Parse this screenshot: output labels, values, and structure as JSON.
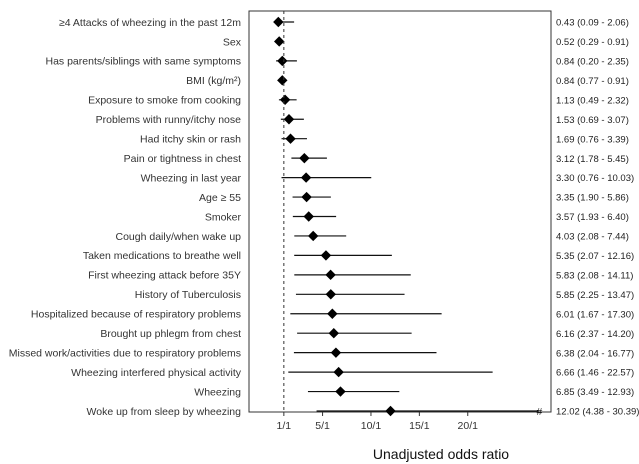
{
  "chart_data": {
    "type": "forest",
    "xlabel": "Unadjusted odds ratio",
    "xlim": [
      -2.6,
      28.6
    ],
    "reference_line": 1,
    "x_ticks": [
      {
        "value": 1,
        "label": "1/1"
      },
      {
        "value": 5,
        "label": "5/1"
      },
      {
        "value": 10,
        "label": "10/1"
      },
      {
        "value": 15,
        "label": "15/1"
      },
      {
        "value": 20,
        "label": "20/1"
      }
    ],
    "rows": [
      {
        "label": "≥4 Attacks of wheezing in the past 12m",
        "or": 0.43,
        "low": 0.09,
        "high": 2.06,
        "text": "0.43 (0.09 - 2.06)"
      },
      {
        "label": "Sex",
        "or": 0.52,
        "low": 0.29,
        "high": 0.91,
        "text": "0.52 (0.29 - 0.91)"
      },
      {
        "label": "Has parents/siblings with same symptoms",
        "or": 0.84,
        "low": 0.2,
        "high": 2.35,
        "text": "0.84 (0.20 - 2.35)"
      },
      {
        "label": "BMI (kg/m²)",
        "or": 0.84,
        "low": 0.77,
        "high": 0.91,
        "text": "0.84 (0.77 - 0.91)"
      },
      {
        "label": "Exposure to smoke from cooking",
        "or": 1.13,
        "low": 0.49,
        "high": 2.32,
        "text": "1.13 (0.49 - 2.32)"
      },
      {
        "label": "Problems with runny/itchy nose",
        "or": 1.53,
        "low": 0.69,
        "high": 3.07,
        "text": "1.53 (0.69 - 3.07)"
      },
      {
        "label": "Had itchy skin or rash",
        "or": 1.69,
        "low": 0.76,
        "high": 3.39,
        "text": "1.69 (0.76 - 3.39)"
      },
      {
        "label": "Pain or tightness in chest",
        "or": 3.12,
        "low": 1.78,
        "high": 5.45,
        "text": "3.12 (1.78 - 5.45)"
      },
      {
        "label": "Wheezing in last year",
        "or": 3.3,
        "low": 0.76,
        "high": 10.03,
        "text": "3.30 (0.76 - 10.03)"
      },
      {
        "label": "Age ≥ 55",
        "or": 3.35,
        "low": 1.9,
        "high": 5.86,
        "text": "3.35 (1.90 - 5.86)"
      },
      {
        "label": "Smoker",
        "or": 3.57,
        "low": 1.93,
        "high": 6.4,
        "text": "3.57 (1.93 - 6.40)"
      },
      {
        "label": "Cough daily/when wake up",
        "or": 4.03,
        "low": 2.08,
        "high": 7.44,
        "text": "4.03 (2.08 - 7.44)"
      },
      {
        "label": "Taken medications to breathe well",
        "or": 5.35,
        "low": 2.07,
        "high": 12.16,
        "text": "5.35 (2.07 - 12.16)"
      },
      {
        "label": "First wheezing attack before 35Y",
        "or": 5.83,
        "low": 2.08,
        "high": 14.11,
        "text": "5.83 (2.08 - 14.11)"
      },
      {
        "label": "History of Tuberculosis",
        "or": 5.85,
        "low": 2.25,
        "high": 13.47,
        "text": "5.85 (2.25 - 13.47)"
      },
      {
        "label": "Hospitalized because of respiratory problems",
        "or": 6.01,
        "low": 1.67,
        "high": 17.3,
        "text": "6.01 (1.67 - 17.30)"
      },
      {
        "label": "Brought up phlegm from chest",
        "or": 6.16,
        "low": 2.37,
        "high": 14.2,
        "text": "6.16 (2.37 - 14.20)"
      },
      {
        "label": "Missed work/activities due to respiratory problems",
        "or": 6.38,
        "low": 2.04,
        "high": 16.77,
        "text": "6.38 (2.04 - 16.77)"
      },
      {
        "label": "Wheezing interfered physical activity",
        "or": 6.66,
        "low": 1.46,
        "high": 22.57,
        "text": "6.66 (1.46 - 22.57)"
      },
      {
        "label": "Wheezing",
        "or": 6.85,
        "low": 3.49,
        "high": 12.93,
        "text": "6.85 (3.49 - 12.93)"
      },
      {
        "label": "Woke up from sleep by wheezing",
        "or": 12.02,
        "low": 4.38,
        "high": 30.39,
        "text": "12.02 (4.38 - 30.39)",
        "truncated_marker": "#",
        "truncated_value": 27.3
      }
    ]
  }
}
